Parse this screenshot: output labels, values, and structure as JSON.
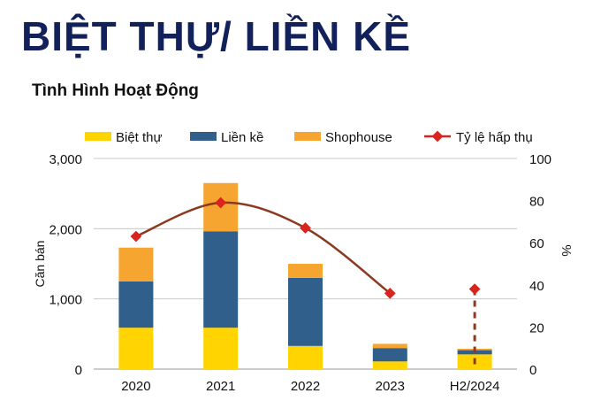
{
  "header": {
    "title": "BIỆT THỰ/ LIỀN KỀ",
    "subtitle": "Tình Hình Hoạt Động"
  },
  "colors": {
    "title": "#13215b",
    "biet_thu": "#ffd400",
    "lien_ke": "#2f5f8a",
    "shophouse": "#f7a531",
    "ty_le": "#d9231d",
    "ty_le_line": "#8b3a1f"
  },
  "chart_data": {
    "type": "bar",
    "stacked": true,
    "categories": [
      "2020",
      "2021",
      "2022",
      "2023",
      "H2/2024"
    ],
    "series": [
      {
        "name": "Biệt thự",
        "values": [
          590,
          590,
          330,
          110,
          210
        ]
      },
      {
        "name": "Liền kề",
        "values": [
          660,
          1370,
          970,
          190,
          60
        ]
      },
      {
        "name": "Shophouse",
        "values": [
          480,
          690,
          200,
          60,
          20
        ]
      }
    ],
    "line_series": {
      "name": "Tỷ lệ hấp thụ",
      "values": [
        63,
        79,
        67,
        36,
        38
      ],
      "axis": "right"
    },
    "ylabel": "Căn bán",
    "y2label": "%",
    "ylim": [
      0,
      3000
    ],
    "y2lim": [
      0,
      100
    ],
    "yticks": [
      "0",
      "1,000",
      "2,000",
      "3,000"
    ],
    "y2ticks": [
      "0",
      "20",
      "40",
      "60",
      "80",
      "100"
    ],
    "grid": true,
    "legend_position": "top"
  }
}
